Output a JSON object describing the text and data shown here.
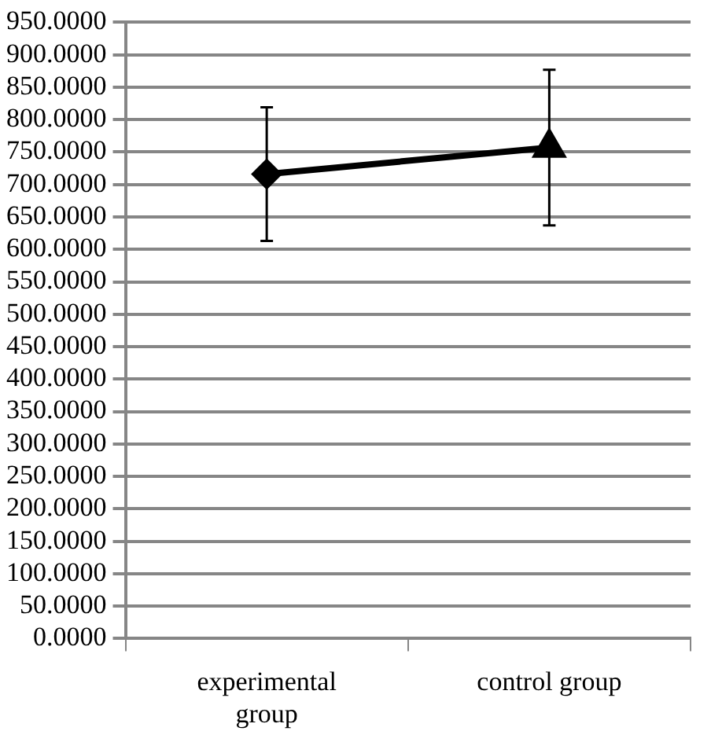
{
  "chart_data": {
    "type": "line",
    "categories": [
      "experimental group",
      "control group"
    ],
    "series": [
      {
        "color": "#000000",
        "values": [
          716,
          757
        ],
        "marker": "none"
      },
      {
        "type": "scatter",
        "color": "#000000",
        "x": [
          "experimental group"
        ],
        "values": [
          716
        ],
        "errors": [
          103
        ],
        "marker": "diamond"
      },
      {
        "type": "scatter",
        "color": "#000000",
        "x": [
          "control group"
        ],
        "values": [
          757
        ],
        "errors": [
          120
        ],
        "marker": "triangle"
      }
    ],
    "ylim": [
      0,
      950
    ],
    "yticks": [
      {
        "value": 0,
        "label": "0.0000"
      },
      {
        "value": 50,
        "label": "50.0000"
      },
      {
        "value": 100,
        "label": "100.0000"
      },
      {
        "value": 150,
        "label": "150.0000"
      },
      {
        "value": 200,
        "label": "200.0000"
      },
      {
        "value": 250,
        "label": "250.0000"
      },
      {
        "value": 300,
        "label": "300.0000"
      },
      {
        "value": 350,
        "label": "350.0000"
      },
      {
        "value": 400,
        "label": "400.0000"
      },
      {
        "value": 450,
        "label": "450.0000"
      },
      {
        "value": 500,
        "label": "500.0000"
      },
      {
        "value": 550,
        "label": "550.0000"
      },
      {
        "value": 600,
        "label": "600.0000"
      },
      {
        "value": 650,
        "label": "650.0000"
      },
      {
        "value": 700,
        "label": "700.0000"
      },
      {
        "value": 750,
        "label": "750.0000"
      },
      {
        "value": 800,
        "label": "800.0000"
      },
      {
        "value": 850,
        "label": "850.0000"
      },
      {
        "value": 900,
        "label": "900.0000"
      },
      {
        "value": 950,
        "label": "950.0000"
      }
    ],
    "grid": "y",
    "legend": false,
    "line_style": "solid"
  }
}
